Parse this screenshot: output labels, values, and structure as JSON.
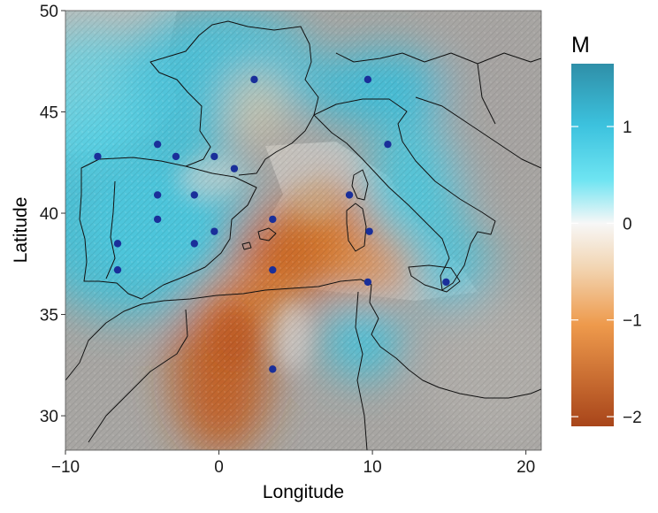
{
  "axes": {
    "x_label": "Longitude",
    "y_label": "Latitude",
    "x_range": [
      -10,
      21
    ],
    "y_range": [
      28.3,
      50
    ],
    "x_ticks": [
      -10,
      0,
      10,
      20
    ],
    "y_ticks": [
      30,
      35,
      40,
      45,
      50
    ],
    "x_tick_labels": [
      "−10",
      "0",
      "10",
      "20"
    ],
    "y_tick_labels": [
      "30",
      "35",
      "40",
      "45",
      "50"
    ]
  },
  "legend": {
    "title": "M",
    "range": [
      -2.1,
      1.65
    ],
    "ticks": [
      1,
      0,
      -1,
      -2
    ],
    "tick_labels": [
      "1",
      "0",
      "−1",
      "−2"
    ],
    "colors": {
      "high": "#2f8fa8",
      "mid_high": "#4fd6ea",
      "zero": "#f7f7f7",
      "mid_low": "#ee9a4c",
      "low": "#a8451a"
    }
  },
  "stations": [
    {
      "lon": -7.9,
      "lat": 42.8
    },
    {
      "lon": -4.0,
      "lat": 43.4
    },
    {
      "lon": -2.8,
      "lat": 42.8
    },
    {
      "lon": -0.3,
      "lat": 42.8
    },
    {
      "lon": 1.0,
      "lat": 42.2
    },
    {
      "lon": -4.0,
      "lat": 40.9
    },
    {
      "lon": -1.6,
      "lat": 40.9
    },
    {
      "lon": -4.0,
      "lat": 39.7
    },
    {
      "lon": -0.3,
      "lat": 39.1
    },
    {
      "lon": -6.6,
      "lat": 38.5
    },
    {
      "lon": -1.6,
      "lat": 38.5
    },
    {
      "lon": -6.6,
      "lat": 37.2
    },
    {
      "lon": 2.3,
      "lat": 46.6
    },
    {
      "lon": 9.7,
      "lat": 46.6
    },
    {
      "lon": 11.0,
      "lat": 43.4
    },
    {
      "lon": 8.5,
      "lat": 40.9
    },
    {
      "lon": 3.5,
      "lat": 39.7
    },
    {
      "lon": 9.8,
      "lat": 39.1
    },
    {
      "lon": 3.5,
      "lat": 37.2
    },
    {
      "lon": 9.7,
      "lat": 36.6
    },
    {
      "lon": 14.8,
      "lat": 36.6
    },
    {
      "lon": 3.5,
      "lat": 32.3
    }
  ]
}
